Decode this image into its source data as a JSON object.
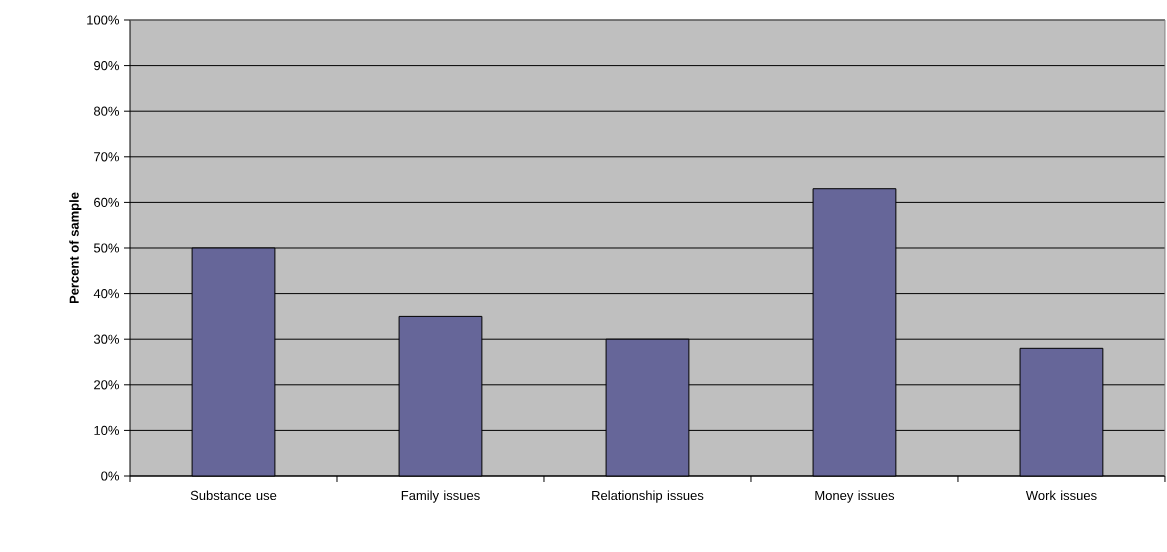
{
  "chart_data": {
    "type": "bar",
    "ylabel": "Percent of sample",
    "categories": [
      "Substance use",
      "Family issues",
      "Relationship issues",
      "Money issues",
      "Work issues"
    ],
    "values": [
      50,
      35,
      30,
      63,
      28
    ],
    "color": "#666699",
    "ylim": [
      0,
      100
    ],
    "yticks": [
      {
        "value": 0,
        "label": "0%"
      },
      {
        "value": 10,
        "label": "10%"
      },
      {
        "value": 20,
        "label": "20%"
      },
      {
        "value": 30,
        "label": "30%"
      },
      {
        "value": 40,
        "label": "40%"
      },
      {
        "value": 50,
        "label": "50%"
      },
      {
        "value": 60,
        "label": "60%"
      },
      {
        "value": 70,
        "label": "70%"
      },
      {
        "value": 80,
        "label": "80%"
      },
      {
        "value": 90,
        "label": "90%"
      },
      {
        "value": 100,
        "label": "100%"
      }
    ],
    "grid": "y"
  }
}
